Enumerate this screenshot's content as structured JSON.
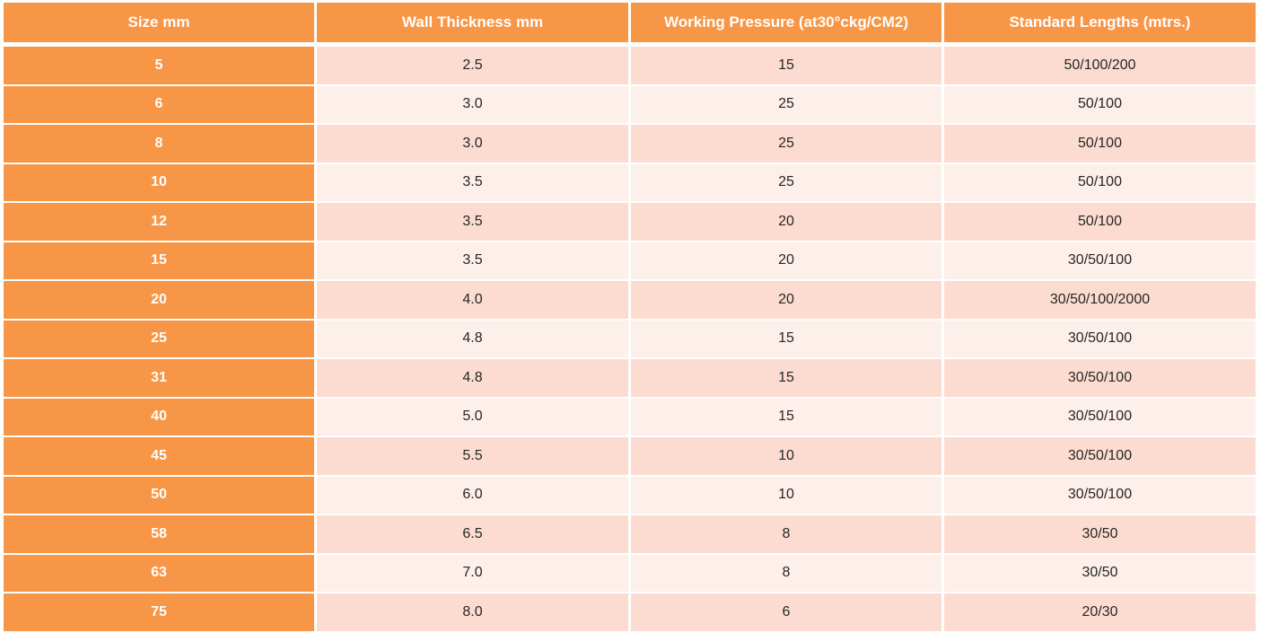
{
  "colors": {
    "header_bg": "#f79646",
    "size_column_bg": "#f79646",
    "row_odd_bg": "#fcdcd0",
    "row_even_bg": "#fdefea",
    "header_text": "#ffffff",
    "body_text": "#262626"
  },
  "table": {
    "headers": [
      "Size mm",
      "Wall Thickness mm",
      "Working Pressure (at30°ckg/CM2)",
      "Standard Lengths (mtrs.)"
    ],
    "rows": [
      [
        "5",
        "2.5",
        "15",
        "50/100/200"
      ],
      [
        "6",
        "3.0",
        "25",
        "50/100"
      ],
      [
        "8",
        "3.0",
        "25",
        "50/100"
      ],
      [
        "10",
        "3.5",
        "25",
        "50/100"
      ],
      [
        "12",
        "3.5",
        "20",
        "50/100"
      ],
      [
        "15",
        "3.5",
        "20",
        "30/50/100"
      ],
      [
        "20",
        "4.0",
        "20",
        "30/50/100/2000"
      ],
      [
        "25",
        "4.8",
        "15",
        "30/50/100"
      ],
      [
        "31",
        "4.8",
        "15",
        "30/50/100"
      ],
      [
        "40",
        "5.0",
        "15",
        "30/50/100"
      ],
      [
        "45",
        "5.5",
        "10",
        "30/50/100"
      ],
      [
        "50",
        "6.0",
        "10",
        "30/50/100"
      ],
      [
        "58",
        "6.5",
        "8",
        "30/50"
      ],
      [
        "63",
        "7.0",
        "8",
        "30/50"
      ],
      [
        "75",
        "8.0",
        "6",
        "20/30"
      ]
    ]
  }
}
